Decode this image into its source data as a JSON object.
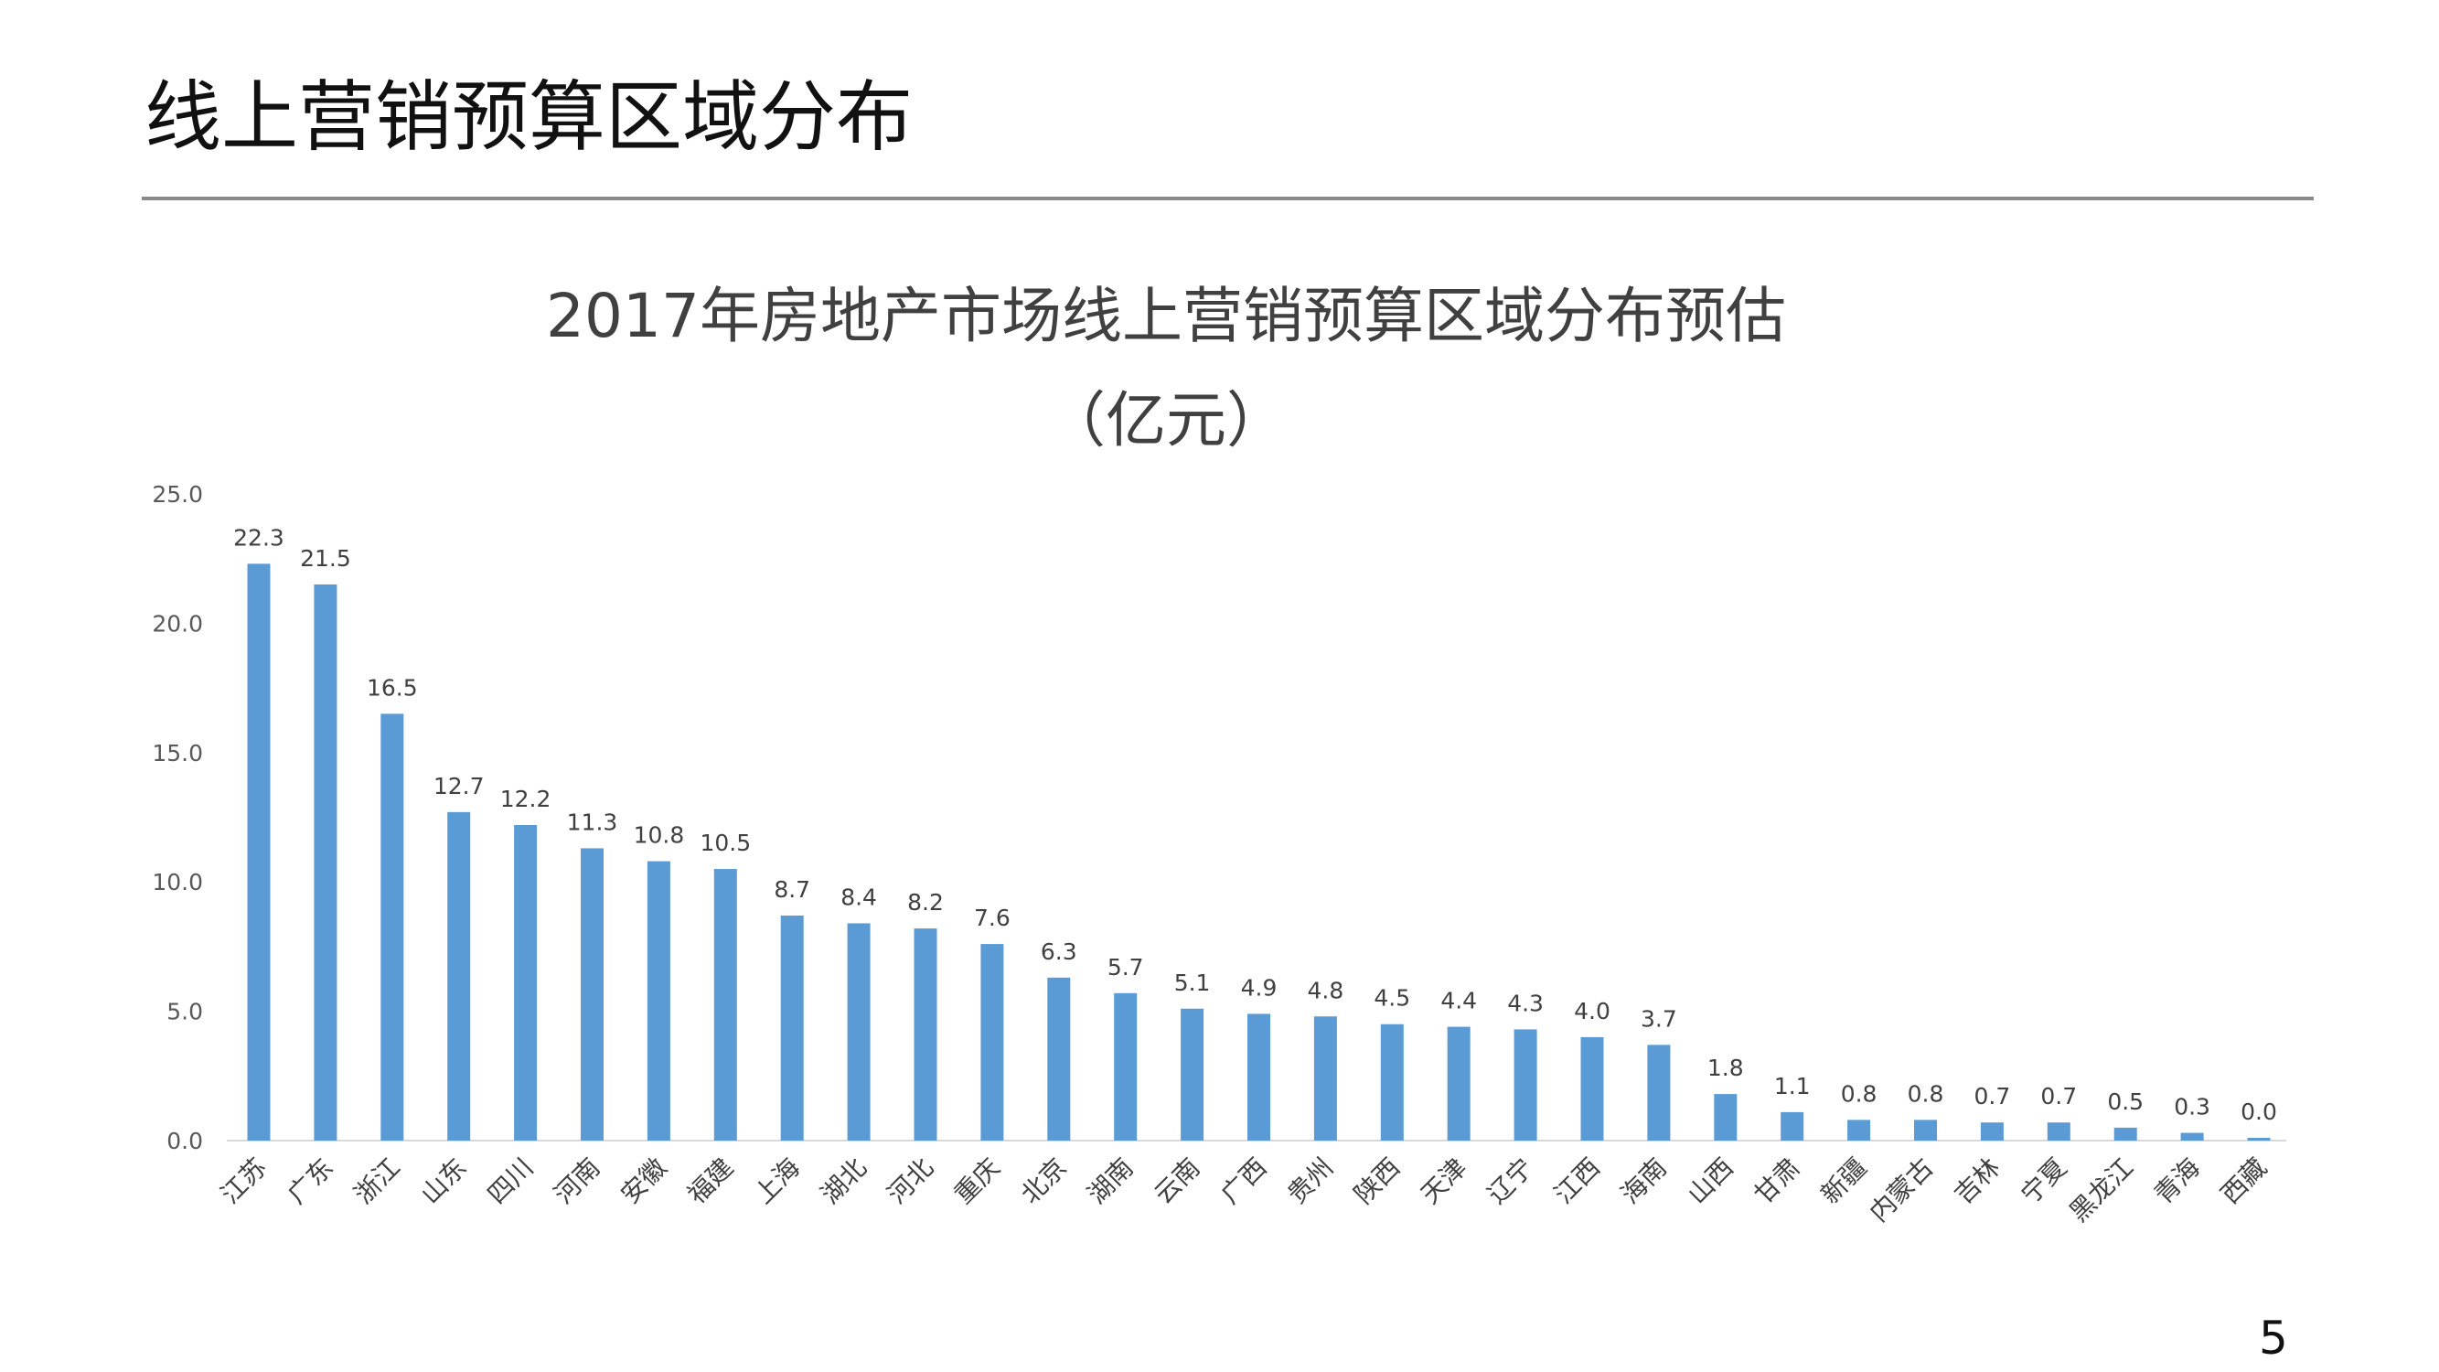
{
  "page": {
    "title": "线上营销预算区域分布",
    "page_number": "5"
  },
  "chart_data": {
    "type": "bar",
    "title": "2017年房地产市场线上营销预算区域分布预估",
    "subtitle": "（亿元）",
    "xlabel": "",
    "ylabel": "",
    "ylim": [
      0,
      25
    ],
    "yticks": [
      "0.0",
      "5.0",
      "10.0",
      "15.0",
      "20.0",
      "25.0"
    ],
    "grid": false,
    "legend": "none",
    "bar_color": "#5b9bd5",
    "categories": [
      "江苏",
      "广东",
      "浙江",
      "山东",
      "四川",
      "河南",
      "安徽",
      "福建",
      "上海",
      "湖北",
      "河北",
      "重庆",
      "北京",
      "湖南",
      "云南",
      "广西",
      "贵州",
      "陕西",
      "天津",
      "辽宁",
      "江西",
      "海南",
      "山西",
      "甘肃",
      "新疆",
      "内蒙古",
      "吉林",
      "宁夏",
      "黑龙江",
      "青海",
      "西藏"
    ],
    "values": [
      22.3,
      21.5,
      16.5,
      12.7,
      12.2,
      11.3,
      10.8,
      10.5,
      8.7,
      8.4,
      8.2,
      7.6,
      6.3,
      5.7,
      5.1,
      4.9,
      4.8,
      4.5,
      4.4,
      4.3,
      4.0,
      3.7,
      1.8,
      1.1,
      0.8,
      0.8,
      0.7,
      0.7,
      0.5,
      0.3,
      0.0
    ],
    "value_labels": [
      "22.3",
      "21.5",
      "16.5",
      "12.7",
      "12.2",
      "11.3",
      "10.8",
      "10.5",
      "8.7",
      "8.4",
      "8.2",
      "7.6",
      "6.3",
      "5.7",
      "5.1",
      "4.9",
      "4.8",
      "4.5",
      "4.4",
      "4.3",
      "4.0",
      "3.7",
      "1.8",
      "1.1",
      "0.8",
      "0.8",
      "0.7",
      "0.7",
      "0.5",
      "0.3",
      "0.0"
    ]
  }
}
